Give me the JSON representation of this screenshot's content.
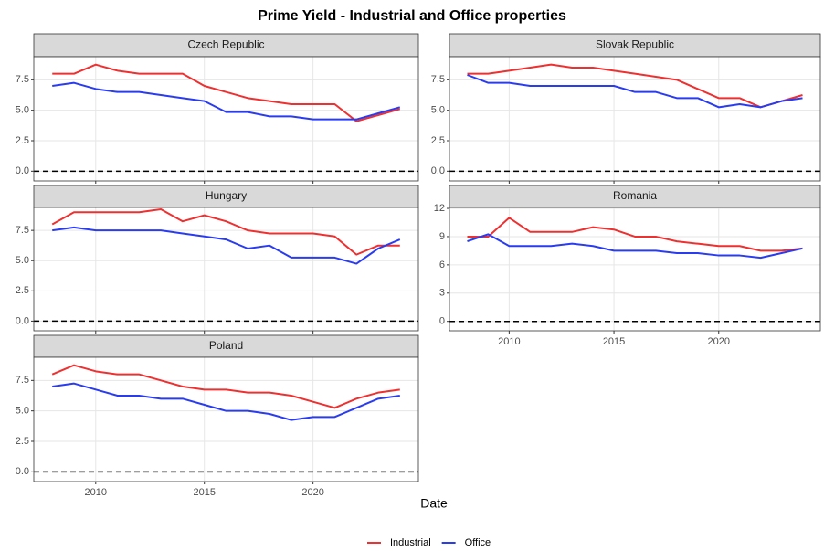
{
  "title": "Prime Yield - Industrial and Office properties",
  "x_label": "Date",
  "chart_data": [
    {
      "type": "line",
      "title": "Czech Republic",
      "x": [
        2008,
        2009,
        2010,
        2011,
        2012,
        2013,
        2014,
        2015,
        2016,
        2017,
        2018,
        2019,
        2020,
        2021,
        2022,
        2023,
        2024
      ],
      "series": [
        {
          "name": "Industrial",
          "color": "#ee3030",
          "values": [
            8.0,
            8.0,
            8.75,
            8.25,
            8.0,
            8.0,
            8.0,
            7.0,
            6.5,
            6.0,
            5.75,
            5.5,
            5.5,
            5.5,
            4.1,
            4.6,
            5.1
          ]
        },
        {
          "name": "Office",
          "color": "#2a3cf0",
          "values": [
            7.0,
            7.25,
            6.75,
            6.5,
            6.5,
            6.25,
            6.0,
            5.75,
            4.85,
            4.85,
            4.5,
            4.5,
            4.25,
            4.25,
            4.25,
            4.75,
            5.25
          ]
        }
      ],
      "xlim": [
        2007.15,
        2024.85
      ],
      "xticks": [
        2010,
        2015,
        2020
      ],
      "ylim": [
        -0.8,
        9.4
      ],
      "yticks": [
        {
          "value": 0,
          "label": "0.0"
        },
        {
          "value": 2.5,
          "label": "2.5"
        },
        {
          "value": 5,
          "label": "5.0"
        },
        {
          "value": 7.5,
          "label": "7.5"
        }
      ],
      "hline": 0,
      "grid": true
    },
    {
      "type": "line",
      "title": "Slovak Republic",
      "x": [
        2008,
        2009,
        2010,
        2011,
        2012,
        2013,
        2014,
        2015,
        2016,
        2017,
        2018,
        2019,
        2020,
        2021,
        2022,
        2023,
        2024
      ],
      "series": [
        {
          "name": "Industrial",
          "color": "#ee3030",
          "values": [
            8.0,
            8.0,
            8.25,
            8.5,
            8.75,
            8.5,
            8.5,
            8.25,
            8.0,
            7.75,
            7.5,
            6.75,
            6.0,
            6.0,
            5.25,
            5.75,
            6.25
          ]
        },
        {
          "name": "Office",
          "color": "#2a3cf0",
          "values": [
            7.9,
            7.25,
            7.25,
            7.0,
            7.0,
            7.0,
            7.0,
            7.0,
            6.5,
            6.5,
            6.0,
            6.0,
            5.25,
            5.5,
            5.25,
            5.75,
            6.0
          ]
        }
      ],
      "xlim": [
        2007.15,
        2024.85
      ],
      "xticks": [
        2010,
        2015,
        2020
      ],
      "ylim": [
        -0.8,
        9.4
      ],
      "yticks": [
        {
          "value": 0,
          "label": "0.0"
        },
        {
          "value": 2.5,
          "label": "2.5"
        },
        {
          "value": 5,
          "label": "5.0"
        },
        {
          "value": 7.5,
          "label": "7.5"
        }
      ],
      "hline": 0,
      "grid": true
    },
    {
      "type": "line",
      "title": "Hungary",
      "x": [
        2008,
        2009,
        2010,
        2011,
        2012,
        2013,
        2014,
        2015,
        2016,
        2017,
        2018,
        2019,
        2020,
        2021,
        2022,
        2023,
        2024
      ],
      "series": [
        {
          "name": "Industrial",
          "color": "#ee3030",
          "values": [
            8.0,
            9.0,
            9.0,
            9.0,
            9.0,
            9.25,
            8.25,
            8.75,
            8.25,
            7.5,
            7.25,
            7.25,
            7.25,
            7.0,
            5.5,
            6.25,
            6.25
          ]
        },
        {
          "name": "Office",
          "color": "#2a3cf0",
          "values": [
            7.5,
            7.75,
            7.5,
            7.5,
            7.5,
            7.5,
            7.25,
            7.0,
            6.75,
            6.0,
            6.25,
            5.25,
            5.25,
            5.25,
            4.75,
            6.0,
            6.75
          ]
        }
      ],
      "xlim": [
        2007.15,
        2024.85
      ],
      "xticks": [
        2010,
        2015,
        2020
      ],
      "ylim": [
        -0.8,
        9.4
      ],
      "yticks": [
        {
          "value": 0,
          "label": "0.0"
        },
        {
          "value": 2.5,
          "label": "2.5"
        },
        {
          "value": 5,
          "label": "5.0"
        },
        {
          "value": 7.5,
          "label": "7.5"
        }
      ],
      "hline": 0,
      "grid": true
    },
    {
      "type": "line",
      "title": "Romania",
      "x": [
        2008,
        2009,
        2010,
        2011,
        2012,
        2013,
        2014,
        2015,
        2016,
        2017,
        2018,
        2019,
        2020,
        2021,
        2022,
        2023,
        2024
      ],
      "series": [
        {
          "name": "Industrial",
          "color": "#ee3030",
          "values": [
            9.0,
            9.0,
            11.0,
            9.5,
            9.5,
            9.5,
            10.0,
            9.75,
            9.0,
            9.0,
            8.5,
            8.25,
            8.0,
            8.0,
            7.5,
            7.5,
            7.75
          ]
        },
        {
          "name": "Office",
          "color": "#2a3cf0",
          "values": [
            8.5,
            9.25,
            8.0,
            8.0,
            8.0,
            8.25,
            8.0,
            7.5,
            7.5,
            7.5,
            7.25,
            7.25,
            7.0,
            7.0,
            6.75,
            7.25,
            7.75
          ]
        }
      ],
      "xlim": [
        2007.15,
        2024.85
      ],
      "xticks": [
        2010,
        2015,
        2020
      ],
      "ylim": [
        -1,
        12.1
      ],
      "yticks": [
        0,
        3,
        6,
        9,
        12
      ],
      "hline": 0,
      "grid": true
    },
    {
      "type": "line",
      "title": "Poland",
      "x": [
        2008,
        2009,
        2010,
        2011,
        2012,
        2013,
        2014,
        2015,
        2016,
        2017,
        2018,
        2019,
        2020,
        2021,
        2022,
        2023,
        2024
      ],
      "series": [
        {
          "name": "Industrial",
          "color": "#ee3030",
          "values": [
            8.0,
            8.75,
            8.25,
            8.0,
            8.0,
            7.5,
            7.0,
            6.75,
            6.75,
            6.5,
            6.5,
            6.25,
            5.75,
            5.25,
            6.0,
            6.5,
            6.75
          ]
        },
        {
          "name": "Office",
          "color": "#2a3cf0",
          "values": [
            7.0,
            7.25,
            6.75,
            6.25,
            6.25,
            6.0,
            6.0,
            5.5,
            5.0,
            5.0,
            4.75,
            4.25,
            4.5,
            4.5,
            5.25,
            6.0,
            6.25
          ]
        }
      ],
      "xlim": [
        2007.15,
        2024.85
      ],
      "xticks": [
        2010,
        2015,
        2020
      ],
      "ylim": [
        -0.8,
        9.4
      ],
      "yticks": [
        {
          "value": 0,
          "label": "0.0"
        },
        {
          "value": 2.5,
          "label": "2.5"
        },
        {
          "value": 5,
          "label": "5.0"
        },
        {
          "value": 7.5,
          "label": "7.5"
        }
      ],
      "hline": 0,
      "grid": true
    }
  ]
}
